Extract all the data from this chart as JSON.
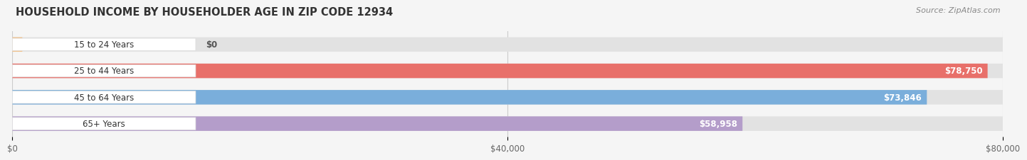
{
  "title": "HOUSEHOLD INCOME BY HOUSEHOLDER AGE IN ZIP CODE 12934",
  "source": "Source: ZipAtlas.com",
  "categories": [
    "15 to 24 Years",
    "25 to 44 Years",
    "45 to 64 Years",
    "65+ Years"
  ],
  "values": [
    0,
    78750,
    73846,
    58958
  ],
  "bar_colors": [
    "#f0c08a",
    "#e8706a",
    "#7aaedb",
    "#b49dca"
  ],
  "bar_labels": [
    "$0",
    "$78,750",
    "$73,846",
    "$58,958"
  ],
  "xlim": [
    0,
    80000
  ],
  "xticks": [
    0,
    40000,
    80000
  ],
  "xtick_labels": [
    "$0",
    "$40,000",
    "$80,000"
  ],
  "background_color": "#f5f5f5",
  "title_fontsize": 10.5,
  "source_fontsize": 8
}
